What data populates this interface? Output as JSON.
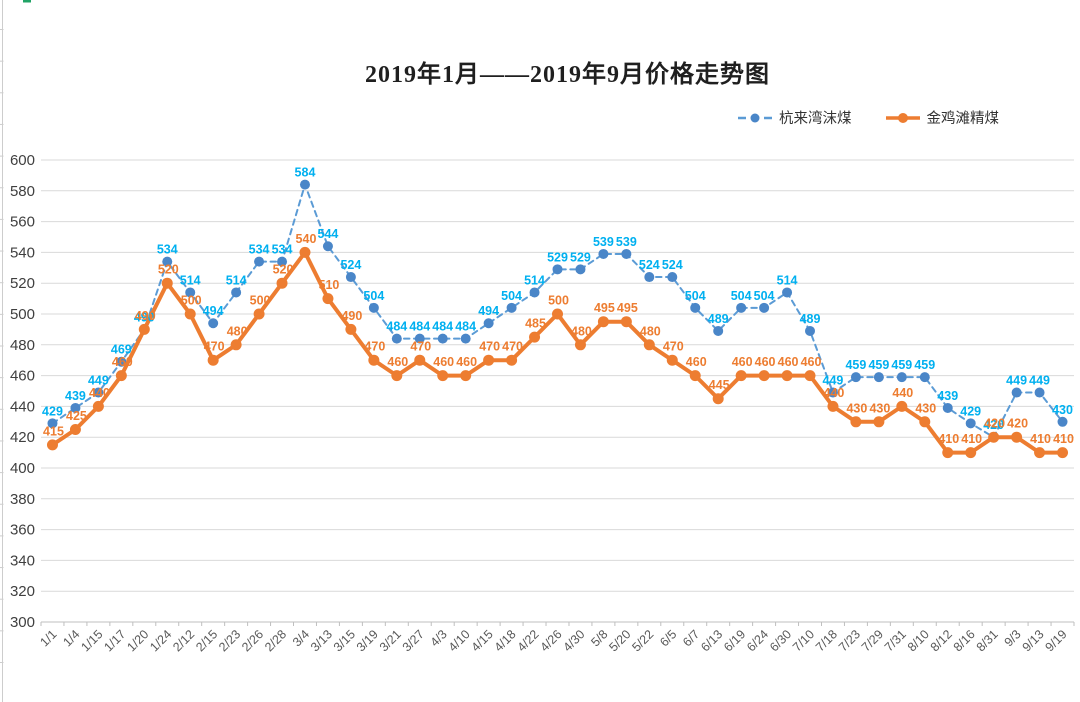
{
  "chart_data": {
    "type": "line",
    "title": "2019年1月——2019年9月价格走势图",
    "categories": [
      "1/1",
      "1/4",
      "1/15",
      "1/17",
      "1/20",
      "1/24",
      "2/12",
      "2/15",
      "2/23",
      "2/26",
      "2/28",
      "3/4",
      "3/13",
      "3/15",
      "3/19",
      "3/21",
      "3/27",
      "4/3",
      "4/10",
      "4/15",
      "4/18",
      "4/22",
      "4/26",
      "4/30",
      "5/8",
      "5/20",
      "5/22",
      "6/5",
      "6/7",
      "6/13",
      "6/19",
      "6/24",
      "6/30",
      "7/10",
      "7/18",
      "7/23",
      "7/29",
      "7/31",
      "8/10",
      "8/12",
      "8/16",
      "8/31",
      "9/3",
      "9/13",
      "9/19"
    ],
    "series": [
      {
        "name": "杭来湾沫煤",
        "style": "dashed",
        "line_color": "#5B9BD5",
        "marker_color": "#4A86C8",
        "label_color": "#00B0F0",
        "values": [
          429,
          439,
          449,
          469,
          490,
          534,
          514,
          494,
          514,
          534,
          534,
          584,
          544,
          524,
          504,
          484,
          484,
          484,
          484,
          494,
          504,
          514,
          529,
          529,
          539,
          539,
          524,
          524,
          504,
          489,
          504,
          504,
          514,
          489,
          449,
          459,
          459,
          459,
          459,
          439,
          429,
          420,
          449,
          449,
          430
        ]
      },
      {
        "name": "金鸡滩精煤",
        "style": "solid",
        "line_color": "#ED7D31",
        "marker_color": "#ED7D31",
        "label_color": "#ED7D31",
        "values": [
          415,
          425,
          440,
          460,
          490,
          520,
          500,
          470,
          480,
          500,
          520,
          540,
          510,
          490,
          470,
          460,
          470,
          460,
          460,
          470,
          470,
          485,
          500,
          480,
          495,
          495,
          480,
          470,
          460,
          445,
          460,
          460,
          460,
          460,
          440,
          430,
          430,
          440,
          430,
          410,
          410,
          420,
          420,
          410,
          410
        ]
      }
    ],
    "ylim": [
      300,
      600
    ],
    "ytick_step": 20,
    "grid": true,
    "legend_position": "top-right",
    "axis_text_color": "#595959",
    "ytick_text_color": "#3F3F3F",
    "grid_color": "#D9D9D9",
    "axis_line_color": "#BFBFBF"
  }
}
